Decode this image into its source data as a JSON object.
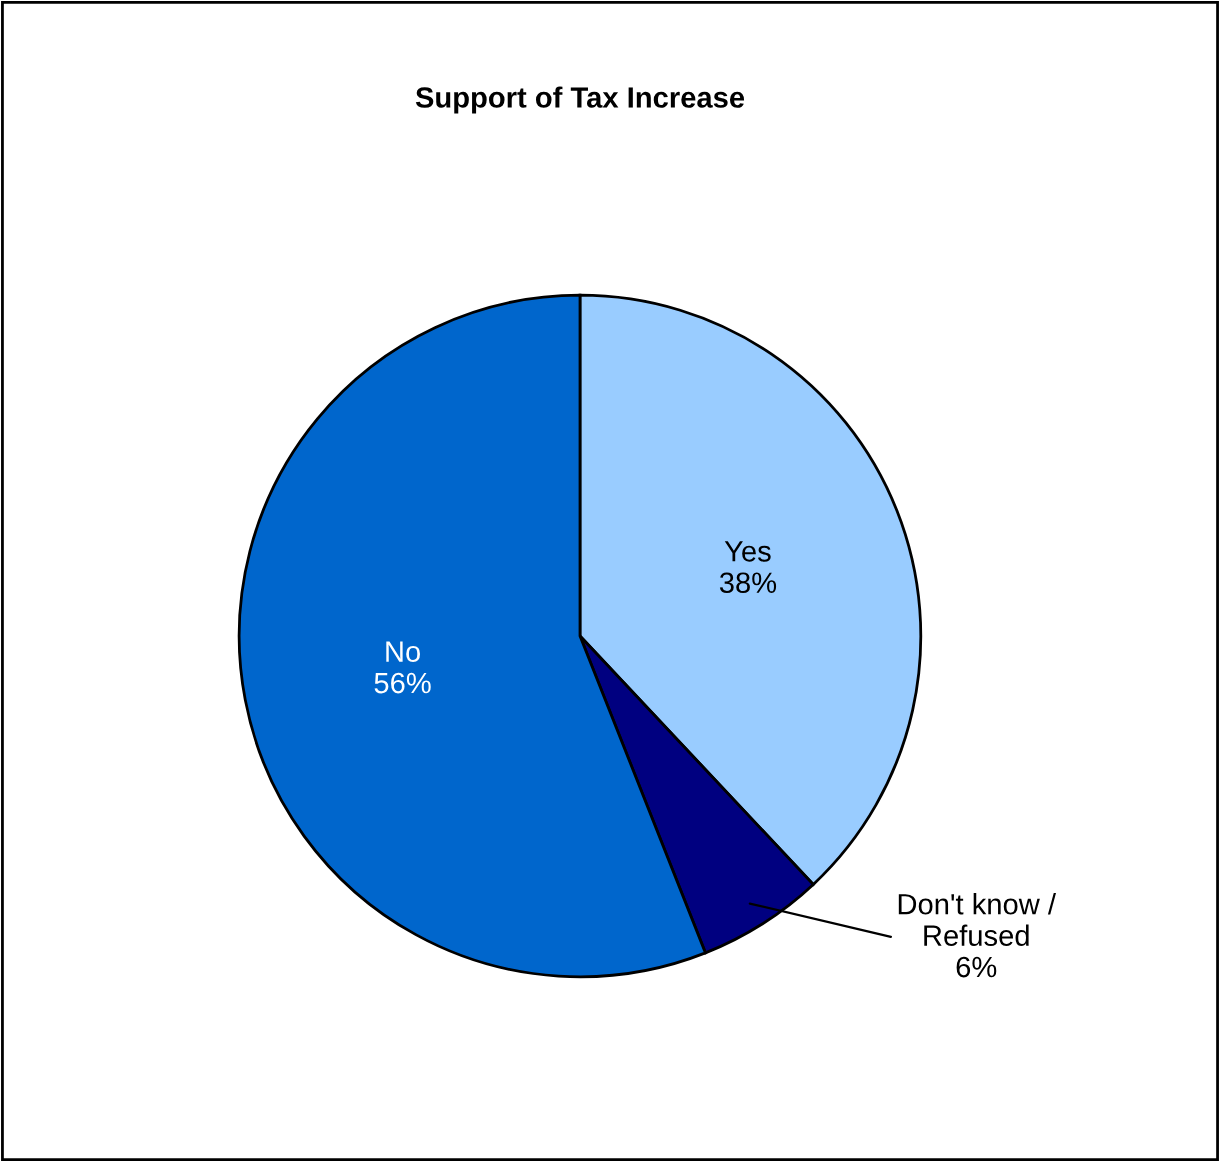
{
  "chart_data": {
    "type": "pie",
    "title": "Support of Tax Increase",
    "categories": [
      "Yes",
      "Don't know /\nRefused",
      "No"
    ],
    "values": [
      38,
      6,
      56
    ],
    "colors": [
      "#99ccff",
      "#000080",
      "#0066cc"
    ],
    "value_labels": [
      "38%",
      "6%",
      "56%"
    ]
  }
}
